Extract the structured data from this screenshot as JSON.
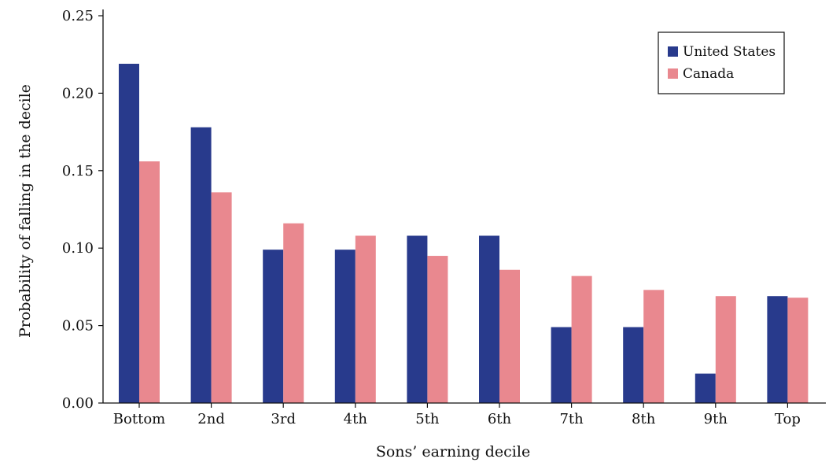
{
  "chart_data": {
    "type": "bar",
    "title": "",
    "xlabel": "Sons’ earning decile",
    "ylabel": "Probability of falling in the decile",
    "categories": [
      "Bottom",
      "2nd",
      "3rd",
      "4th",
      "5th",
      "6th",
      "7th",
      "8th",
      "9th",
      "Top"
    ],
    "series": [
      {
        "name": "United States",
        "color": "#283a8c",
        "values": [
          0.219,
          0.178,
          0.099,
          0.099,
          0.108,
          0.108,
          0.049,
          0.049,
          0.019,
          0.069
        ]
      },
      {
        "name": "Canada",
        "color": "#e9888f",
        "values": [
          0.156,
          0.136,
          0.116,
          0.108,
          0.095,
          0.086,
          0.082,
          0.073,
          0.069,
          0.068
        ]
      }
    ],
    "ylim": [
      0,
      0.25
    ],
    "yticks": [
      "0.00",
      "0.05",
      "0.10",
      "0.15",
      "0.20",
      "0.25"
    ],
    "grid": false,
    "legend_position": "top-right"
  }
}
